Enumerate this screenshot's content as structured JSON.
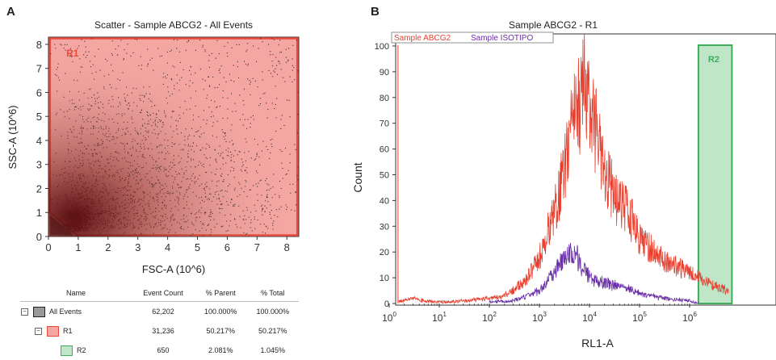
{
  "panel_labels": [
    "A",
    "B"
  ],
  "scatter": {
    "title": "Scatter - Sample ABCG2 - All Events",
    "gate_label": "R1"
  },
  "histogram": {
    "title": "Sample ABCG2 - R1",
    "gate_label": "R2"
  },
  "stats_table": {
    "headers": [
      "Name",
      "Event Count",
      "% Parent",
      "% Total"
    ],
    "rows": [
      {
        "name": "All Events",
        "count": "62,202",
        "parent": "100.000%",
        "total": "100.000%",
        "color": "#222222",
        "fill": "#999999",
        "indent": 0
      },
      {
        "name": "R1",
        "count": "31,236",
        "parent": "50.217%",
        "total": "50.217%",
        "color": "#e84a3c",
        "fill": "#f4a7a2",
        "indent": 1
      },
      {
        "name": "R2",
        "count": "650",
        "parent": "2.081%",
        "total": "1.045%",
        "color": "#3fae5b",
        "fill": "#bfe6c8",
        "indent": 2
      }
    ]
  },
  "chart_data": [
    {
      "type": "scatter",
      "title": "Scatter - Sample ABCG2 - All Events",
      "xlabel": "FSC-A (10^6)",
      "ylabel": "SSC-A (10^6)",
      "xlim": [
        0,
        8.4
      ],
      "ylim": [
        0,
        8.3
      ],
      "xticks": [
        "0",
        "1",
        "2",
        "3",
        "4",
        "5",
        "6",
        "7",
        "8"
      ],
      "yticks": [
        "0",
        "1",
        "2",
        "3",
        "4",
        "5",
        "6",
        "7",
        "8"
      ],
      "density_center": [
        1.0,
        0.5
      ],
      "gate": {
        "name": "R1",
        "polygon": [
          [
            0.05,
            1.0
          ],
          [
            0.95,
            0.05
          ],
          [
            8.35,
            0.05
          ],
          [
            8.35,
            8.25
          ],
          [
            0.05,
            8.25
          ]
        ],
        "color": "#e84a3c"
      }
    },
    {
      "type": "line",
      "title": "Sample ABCG2 - R1",
      "xlabel": "RL1-A",
      "ylabel": "Count",
      "x_scale": "log",
      "xlim": [
        1,
        10000000
      ],
      "ylim": [
        0,
        100
      ],
      "xticks": [
        "10^0",
        "10^1",
        "10^2",
        "10^3",
        "10^4",
        "10^5",
        "10^6"
      ],
      "yticks": [
        "0",
        "10",
        "20",
        "30",
        "40",
        "50",
        "60",
        "70",
        "80",
        "90",
        "100"
      ],
      "legend_position": "top-left",
      "series": [
        {
          "name": "Sample ABCG2",
          "color": "#e8402f",
          "x": [
            1.5,
            3,
            5,
            10,
            30,
            100,
            200,
            500,
            1000,
            2000,
            3000,
            5000,
            8000,
            10000,
            15000,
            30000,
            60000,
            100000,
            300000,
            1000000,
            3000000,
            6000000
          ],
          "y": [
            0.5,
            2,
            1,
            0.5,
            1,
            2,
            3,
            8,
            18,
            35,
            50,
            72,
            86,
            78,
            62,
            42,
            35,
            25,
            17,
            12,
            7,
            5
          ]
        },
        {
          "name": "Sample ISOTIPO",
          "color": "#6a2fa8",
          "x": [
            100,
            300,
            1000,
            2000,
            3000,
            5000,
            7000,
            10000,
            20000,
            50000,
            100000,
            300000,
            1000000,
            1500000
          ],
          "y": [
            0.5,
            1,
            5,
            12,
            17,
            20,
            15,
            10,
            8,
            6,
            4,
            2,
            1,
            0
          ]
        }
      ],
      "gate": {
        "name": "R2",
        "x_start": 1500000,
        "x_end": 7000000,
        "color": "#3fae5b"
      }
    }
  ]
}
